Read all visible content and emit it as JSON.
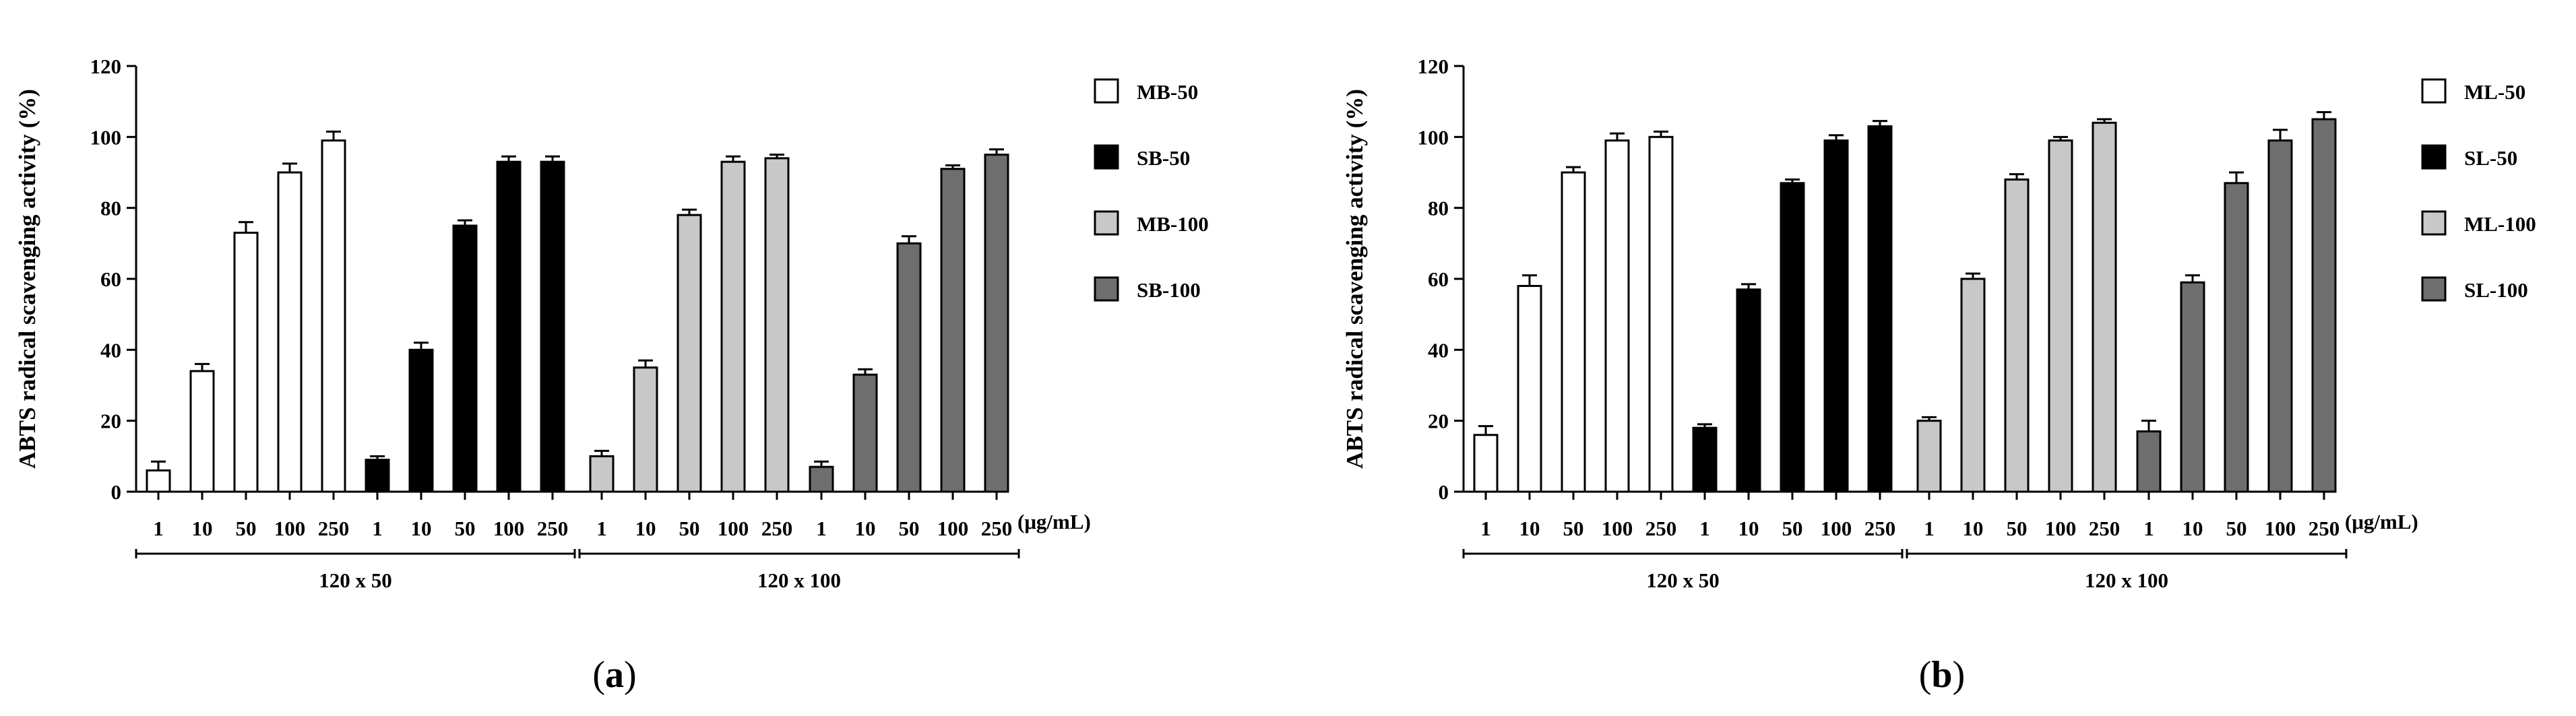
{
  "colors": {
    "MB-50": "#ffffff",
    "SB-50": "#000000",
    "MB-100": "#c8c8c8",
    "SB-100": "#6e6e6e",
    "ML-50": "#ffffff",
    "SL-50": "#000000",
    "ML-100": "#c8c8c8",
    "SL-100": "#6e6e6e"
  },
  "chart_data": [
    {
      "type": "bar",
      "panel_label": "a",
      "ylabel": "ABTS radical scavenging activity (%)",
      "ylim": [
        0,
        120
      ],
      "yticks": [
        0,
        20,
        40,
        60,
        80,
        100,
        120
      ],
      "categories": [
        "1",
        "10",
        "50",
        "100",
        "250"
      ],
      "unit": "(μg/mL)",
      "groups": [
        {
          "name": "120 x 50",
          "series": [
            "MB-50",
            "SB-50"
          ]
        },
        {
          "name": "120 x 100",
          "series": [
            "MB-100",
            "SB-100"
          ]
        }
      ],
      "legend": [
        "MB-50",
        "SB-50",
        "MB-100",
        "SB-100"
      ],
      "series": [
        {
          "name": "MB-50",
          "values": [
            6,
            34,
            73,
            90,
            99
          ],
          "errors": [
            2.5,
            2,
            3,
            2.5,
            2.5
          ]
        },
        {
          "name": "SB-50",
          "values": [
            9,
            40,
            75,
            93,
            93
          ],
          "errors": [
            1,
            2,
            1.5,
            1.5,
            1.5
          ]
        },
        {
          "name": "MB-100",
          "values": [
            10,
            35,
            78,
            93,
            94
          ],
          "errors": [
            1.5,
            2,
            1.5,
            1.5,
            1
          ]
        },
        {
          "name": "SB-100",
          "values": [
            7,
            33,
            70,
            91,
            95
          ],
          "errors": [
            1.5,
            1.5,
            2,
            1,
            1.5
          ]
        }
      ]
    },
    {
      "type": "bar",
      "panel_label": "b",
      "ylabel": "ABTS radical scavenging activity (%)",
      "ylim": [
        0,
        120
      ],
      "yticks": [
        0,
        20,
        40,
        60,
        80,
        100,
        120
      ],
      "categories": [
        "1",
        "10",
        "50",
        "100",
        "250"
      ],
      "unit": "(μg/mL)",
      "groups": [
        {
          "name": "120 x 50",
          "series": [
            "ML-50",
            "SL-50"
          ]
        },
        {
          "name": "120 x 100",
          "series": [
            "ML-100",
            "SL-100"
          ]
        }
      ],
      "legend": [
        "ML-50",
        "SL-50",
        "ML-100",
        "SL-100"
      ],
      "series": [
        {
          "name": "ML-50",
          "values": [
            16,
            58,
            90,
            99,
            100
          ],
          "errors": [
            2.5,
            3,
            1.5,
            2,
            1.5
          ]
        },
        {
          "name": "SL-50",
          "values": [
            18,
            57,
            87,
            99,
            103
          ],
          "errors": [
            1,
            1.5,
            1,
            1.5,
            1.5
          ]
        },
        {
          "name": "ML-100",
          "values": [
            20,
            60,
            88,
            99,
            104
          ],
          "errors": [
            1,
            1.5,
            1.5,
            1,
            1
          ]
        },
        {
          "name": "SL-100",
          "values": [
            17,
            59,
            87,
            99,
            105
          ],
          "errors": [
            3,
            2,
            3,
            3,
            2
          ]
        }
      ]
    }
  ]
}
